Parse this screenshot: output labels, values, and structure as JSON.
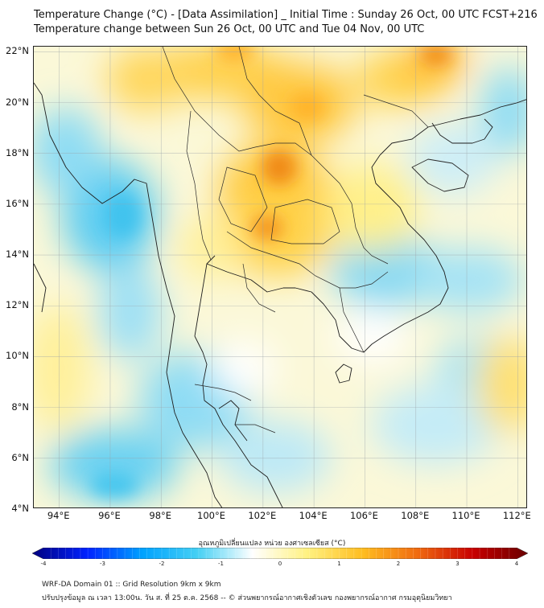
{
  "header": {
    "title_line1": "Temperature Change (°C) - [Data Assimilation] _ Initial Time : Sunday 26 Oct, 00 UTC FCST+216",
    "title_line2": "Temperature change between Sun 26 Oct, 00 UTC and Tue 04 Nov, 00 UTC"
  },
  "map": {
    "lat_labels": [
      "22°N",
      "20°N",
      "18°N",
      "16°N",
      "14°N",
      "12°N",
      "10°N",
      "8°N",
      "6°N",
      "4°N"
    ],
    "lon_labels": [
      "94°E",
      "96°E",
      "98°E",
      "100°E",
      "102°E",
      "104°E",
      "106°E",
      "108°E",
      "110°E",
      "112°E"
    ],
    "lat_values": [
      22,
      20,
      18,
      16,
      14,
      12,
      10,
      8,
      6,
      4
    ],
    "lon_values": [
      94,
      96,
      98,
      100,
      102,
      104,
      106,
      108,
      110,
      112
    ],
    "extent": {
      "lon_min": 93,
      "lon_max": 112.4,
      "lat_min": 4,
      "lat_max": 22.2
    },
    "field_colors": {
      "cold": "#3fc3ee",
      "neutral": "#ffffff",
      "warm": "#ffb020",
      "hot": "#f07a10"
    }
  },
  "colorbar": {
    "label": "อุณหภูมิเปลี่ยนแปลง หน่วย องศาเซลเซียส (°C)",
    "ticks": [
      "-4",
      "-3",
      "-2",
      "-1",
      "0",
      "1",
      "2",
      "3",
      "4"
    ],
    "tick_values": [
      -4,
      -3,
      -2,
      -1,
      0,
      1,
      2,
      3,
      4
    ],
    "range": [
      -4,
      4
    ],
    "colors": [
      "#00007f",
      "#0022ff",
      "#00a2ff",
      "#45d0f4",
      "#ffffff",
      "#fff180",
      "#ffbd20",
      "#f06a10",
      "#c80000",
      "#6a0000"
    ]
  },
  "footer": {
    "line1": "WRF-DA Domain 01 :: Grid Resolution 9km x 9km",
    "line2": "ปรับปรุงข้อมูล ณ เวลา 13:00น. วัน ส. ที่ 25 ต.ค. 2568 -- © ส่วนพยากรณ์อากาศเชิงตัวเลข กองพยากรณ์อากาศ กรมอุตุนิยมวิทยา"
  }
}
